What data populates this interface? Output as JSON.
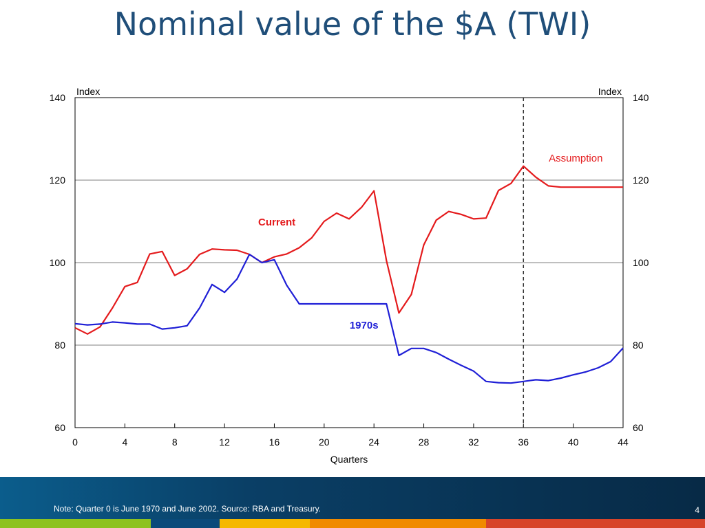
{
  "slide": {
    "title": "Nominal value of the $A (TWI)",
    "note": "Note: Quarter 0 is June 1970 and June 2002. Source: RBA and Treasury.",
    "page_number": "4"
  },
  "colors": {
    "current": "#e41a1c",
    "series_1970s": "#1f1fd6",
    "title": "#1f4e79",
    "stripes": [
      "#8dc21f",
      "#0a4a7a",
      "#f5b800",
      "#f08a00",
      "#d7442a"
    ]
  },
  "chart_data": {
    "type": "line",
    "xlabel": "Quarters",
    "ylabel_left": "Index",
    "ylabel_right": "Index",
    "xlim": [
      0,
      44
    ],
    "ylim": [
      60,
      140
    ],
    "x_ticks": [
      0,
      4,
      8,
      12,
      16,
      20,
      24,
      28,
      32,
      36,
      40,
      44
    ],
    "y_ticks": [
      60,
      80,
      100,
      120,
      140
    ],
    "grid": "horizontal",
    "vertical_marker_x": 36,
    "annotations": [
      {
        "text": "Assumption",
        "x": 40.2,
        "y": 124.5,
        "color_key": "current",
        "bold": false
      },
      {
        "text": "Current",
        "x": 16.2,
        "y": 109,
        "color_key": "current",
        "bold": true
      },
      {
        "text": "1970s",
        "x": 23.2,
        "y": 84,
        "color_key": "series_1970s",
        "bold": true
      }
    ],
    "series": [
      {
        "key": "current",
        "x": [
          0,
          1,
          2,
          3,
          4,
          5,
          6,
          7,
          8,
          9,
          10,
          11,
          12,
          13,
          14,
          15,
          16,
          17,
          18,
          19,
          20,
          21,
          22,
          23,
          24,
          25,
          26,
          27,
          28,
          29,
          30,
          31,
          32,
          33,
          34,
          35,
          36,
          37,
          38,
          39,
          40,
          41,
          42,
          43,
          44
        ],
        "values": [
          84.2,
          82.7,
          84.4,
          89.0,
          94.2,
          95.2,
          102.1,
          102.7,
          96.9,
          98.5,
          102.0,
          103.3,
          103.1,
          103.0,
          102.0,
          100.0,
          101.4,
          102.1,
          103.6,
          106.0,
          110.0,
          112.0,
          110.6,
          113.4,
          117.4,
          100.5,
          87.8,
          92.3,
          104.3,
          110.3,
          112.4,
          111.7,
          110.6,
          110.8,
          117.5,
          119.2,
          123.4,
          120.7,
          118.6,
          118.3,
          118.3,
          118.3,
          118.3,
          118.3,
          118.3
        ]
      },
      {
        "key": "series_1970s",
        "x": [
          0,
          1,
          2,
          3,
          4,
          5,
          6,
          7,
          8,
          9,
          10,
          11,
          12,
          13,
          14,
          15,
          16,
          17,
          18,
          19,
          20,
          21,
          22,
          23,
          24,
          25,
          26,
          27,
          28,
          29,
          30,
          31,
          32,
          33,
          34,
          35,
          36,
          37,
          38,
          39,
          40,
          41,
          42,
          43,
          44
        ],
        "values": [
          85.2,
          84.9,
          85.1,
          85.6,
          85.4,
          85.1,
          85.1,
          83.9,
          84.2,
          84.7,
          89.0,
          94.7,
          92.8,
          96.0,
          102.0,
          100.0,
          100.7,
          94.5,
          90.0,
          90.0,
          90.0,
          90.0,
          90.0,
          90.0,
          90.0,
          90.0,
          77.5,
          79.2,
          79.2,
          78.2,
          76.6,
          75.1,
          73.7,
          71.2,
          70.9,
          70.8,
          71.2,
          71.6,
          71.4,
          72.0,
          72.8,
          73.5,
          74.5,
          76.0,
          79.3
        ]
      }
    ]
  }
}
